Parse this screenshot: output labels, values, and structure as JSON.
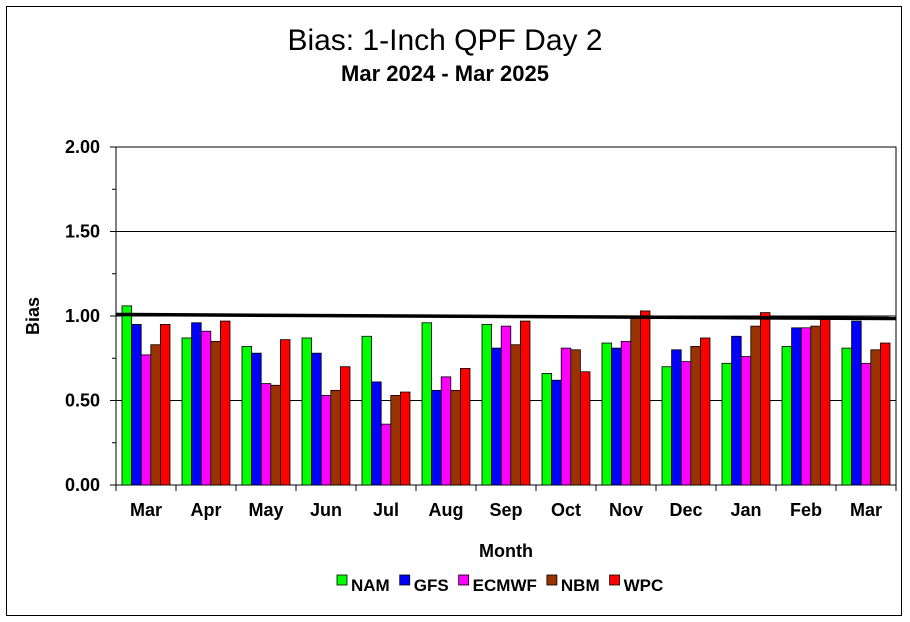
{
  "chart_data": {
    "type": "bar",
    "title": "Bias:  1-Inch QPF Day 2",
    "subtitle": "Mar 2024 - Mar 2025",
    "xlabel": "Month",
    "ylabel": "Bias",
    "ylim": [
      0,
      2.0
    ],
    "yticks": [
      "0.00",
      "0.50",
      "1.00",
      "1.50",
      "2.00"
    ],
    "grid": true,
    "legend_position": "bottom",
    "reference_line": 1.0,
    "categories": [
      "Mar",
      "Apr",
      "May",
      "Jun",
      "Jul",
      "Aug",
      "Sep",
      "Oct",
      "Nov",
      "Dec",
      "Jan",
      "Feb",
      "Mar"
    ],
    "series": [
      {
        "name": "NAM",
        "color": "#00ff00",
        "values": [
          1.06,
          0.87,
          0.82,
          0.87,
          0.88,
          0.96,
          0.95,
          0.66,
          0.84,
          0.7,
          0.72,
          0.82,
          0.81
        ]
      },
      {
        "name": "GFS",
        "color": "#0000ff",
        "values": [
          0.95,
          0.96,
          0.78,
          0.78,
          0.61,
          0.56,
          0.81,
          0.62,
          0.81,
          0.8,
          0.88,
          0.93,
          0.97
        ]
      },
      {
        "name": "ECMWF",
        "color": "#ff00ff",
        "values": [
          0.77,
          0.91,
          0.6,
          0.53,
          0.36,
          0.64,
          0.94,
          0.81,
          0.85,
          0.73,
          0.76,
          0.93,
          0.72
        ]
      },
      {
        "name": "NBM",
        "color": "#993300",
        "values": [
          0.83,
          0.85,
          0.59,
          0.56,
          0.53,
          0.56,
          0.83,
          0.8,
          0.99,
          0.82,
          0.94,
          0.94,
          0.8
        ]
      },
      {
        "name": "WPC",
        "color": "#ff0000",
        "values": [
          0.95,
          0.97,
          0.86,
          0.7,
          0.55,
          0.69,
          0.97,
          0.67,
          1.03,
          0.87,
          1.02,
          0.99,
          0.84
        ]
      }
    ]
  }
}
